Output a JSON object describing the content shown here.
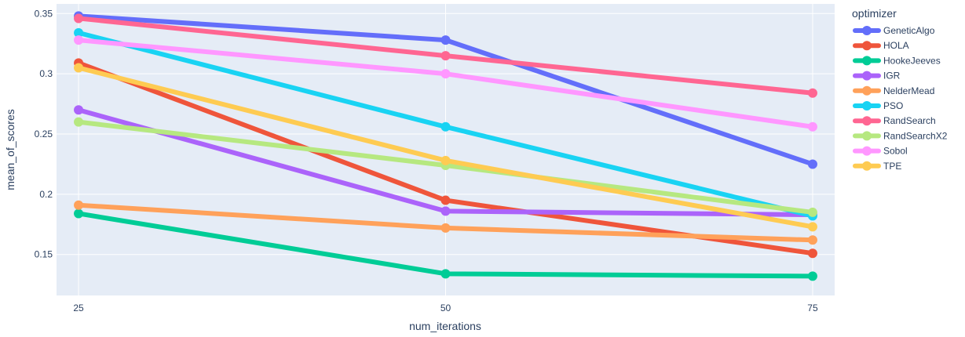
{
  "chart_data": {
    "type": "line",
    "xlabel": "num_iterations",
    "ylabel": "mean_of_scores",
    "x": [
      25,
      50,
      75
    ],
    "x_ticks": [
      "25",
      "50",
      "75"
    ],
    "y_ticks": [
      "0.15",
      "0.2",
      "0.25",
      "0.3",
      "0.35"
    ],
    "xlim": [
      23.5,
      76.5
    ],
    "ylim": [
      0.116,
      0.358
    ],
    "grid": true,
    "plot_background": "#e5ecf6",
    "legend": {
      "title": "optimizer",
      "placement": "right"
    },
    "series": [
      {
        "name": "GeneticAlgo",
        "color": "#636efa",
        "values": [
          0.348,
          0.328,
          0.225
        ]
      },
      {
        "name": "HOLA",
        "color": "#ef553b",
        "values": [
          0.309,
          0.195,
          0.151
        ]
      },
      {
        "name": "HookeJeeves",
        "color": "#00cc96",
        "values": [
          0.184,
          0.134,
          0.132
        ]
      },
      {
        "name": "IGR",
        "color": "#ab63fa",
        "values": [
          0.27,
          0.186,
          0.183
        ]
      },
      {
        "name": "NelderMead",
        "color": "#ffa15a",
        "values": [
          0.191,
          0.172,
          0.162
        ]
      },
      {
        "name": "PSO",
        "color": "#19d3f3",
        "values": [
          0.334,
          0.256,
          0.182
        ]
      },
      {
        "name": "RandSearch",
        "color": "#ff6692",
        "values": [
          0.346,
          0.315,
          0.284
        ]
      },
      {
        "name": "RandSearchX2",
        "color": "#b6e880",
        "values": [
          0.26,
          0.224,
          0.185
        ]
      },
      {
        "name": "Sobol",
        "color": "#ff97ff",
        "values": [
          0.328,
          0.3,
          0.256
        ]
      },
      {
        "name": "TPE",
        "color": "#fecb52",
        "values": [
          0.305,
          0.228,
          0.173
        ]
      }
    ]
  }
}
